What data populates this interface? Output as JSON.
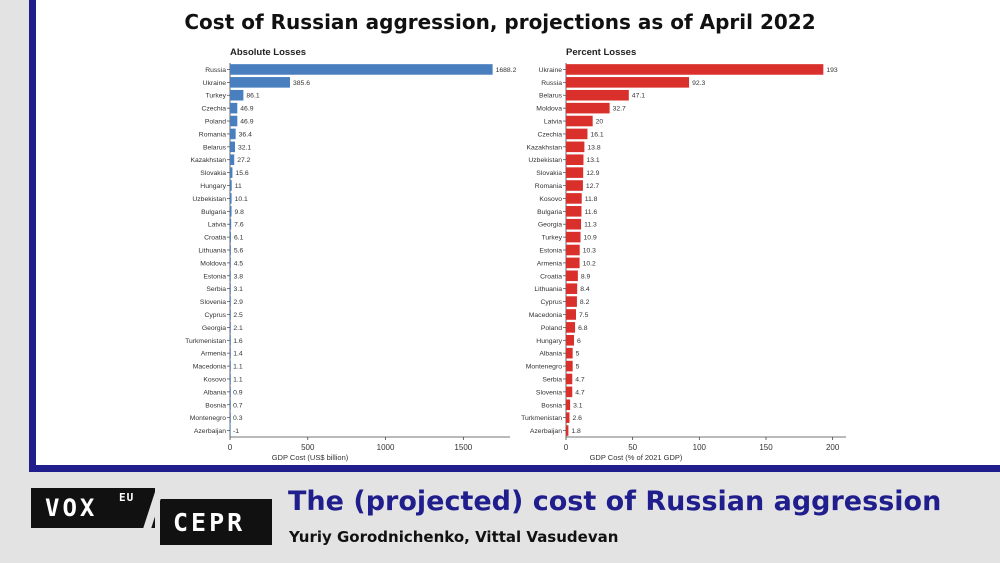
{
  "title": "Cost of Russian aggression, projections as of April 2022",
  "footer": {
    "logo_vox": "VOX",
    "logo_eu": "EU",
    "logo_cepr": "CEPR",
    "title": "The (projected) cost of Russian aggression",
    "authors": "Yuriy Gorodnichenko, Vittal Vasudevan"
  },
  "colors": {
    "absolute_bar": "#4a7fbf",
    "percent_bar": "#d9302b",
    "frame": "#1f1e8c"
  },
  "chart_data": [
    {
      "type": "bar",
      "orientation": "horizontal",
      "title": "Absolute Losses",
      "xlabel": "GDP Cost (US$ billion)",
      "xlim": [
        0,
        1800
      ],
      "xticks": [
        0,
        500,
        1000,
        1500
      ],
      "categories": [
        "Russia",
        "Ukraine",
        "Turkey",
        "Czechia",
        "Poland",
        "Romania",
        "Belarus",
        "Kazakhstan",
        "Slovakia",
        "Hungary",
        "Uzbekistan",
        "Bulgaria",
        "Latvia",
        "Croatia",
        "Lithuania",
        "Moldova",
        "Estonia",
        "Serbia",
        "Slovenia",
        "Cyprus",
        "Georgia",
        "Turkmenistan",
        "Armenia",
        "Macedonia",
        "Kosovo",
        "Albania",
        "Bosnia",
        "Montenegro",
        "Azerbaijan"
      ],
      "values": [
        1688.2,
        385.6,
        86.1,
        46.9,
        46.9,
        36.4,
        32.1,
        27.2,
        15.6,
        11,
        10.1,
        9.8,
        7.6,
        6.1,
        5.6,
        4.5,
        3.8,
        3.1,
        2.9,
        2.5,
        2.1,
        1.6,
        1.4,
        1.1,
        1.1,
        0.9,
        0.7,
        0.3,
        -1
      ],
      "labels": [
        "1688.2",
        "385.6",
        "86.1",
        "46.9",
        "46.9",
        "36.4",
        "32.1",
        "27.2",
        "15.6",
        "11",
        "10.1",
        "9.8",
        "7.6",
        "6.1",
        "5.6",
        "4.5",
        "3.8",
        "3.1",
        "2.9",
        "2.5",
        "2.1",
        "1.6",
        "1.4",
        "1.1",
        "1.1",
        "0.9",
        "0.7",
        "0.3",
        "-1"
      ]
    },
    {
      "type": "bar",
      "orientation": "horizontal",
      "title": "Percent Losses",
      "xlabel": "GDP Cost (% of 2021 GDP)",
      "xlim": [
        0,
        210
      ],
      "xticks": [
        0,
        50,
        100,
        150,
        200
      ],
      "categories": [
        "Ukraine",
        "Russia",
        "Belarus",
        "Moldova",
        "Latvia",
        "Czechia",
        "Kazakhstan",
        "Uzbekistan",
        "Slovakia",
        "Romania",
        "Kosovo",
        "Bulgaria",
        "Georgia",
        "Turkey",
        "Estonia",
        "Armenia",
        "Croatia",
        "Lithuania",
        "Cyprus",
        "Macedonia",
        "Poland",
        "Hungary",
        "Albania",
        "Montenegro",
        "Serbia",
        "Slovenia",
        "Bosnia",
        "Turkmenistan",
        "Azerbaijan"
      ],
      "values": [
        193,
        92.3,
        47.1,
        32.7,
        20,
        16.1,
        13.8,
        13.1,
        12.9,
        12.7,
        11.8,
        11.6,
        11.3,
        10.9,
        10.3,
        10.2,
        8.9,
        8.4,
        8.2,
        7.5,
        6.8,
        6,
        5,
        5,
        4.7,
        4.7,
        3.1,
        2.6,
        1.8
      ],
      "labels": [
        "193",
        "92.3",
        "47.1",
        "32.7",
        "20",
        "16.1",
        "13.8",
        "13.1",
        "12.9",
        "12.7",
        "11.8",
        "11.6",
        "11.3",
        "10.9",
        "10.3",
        "10.2",
        "8.9",
        "8.4",
        "8.2",
        "7.5",
        "6.8",
        "6",
        "5",
        "5",
        "4.7",
        "4.7",
        "3.1",
        "2.6",
        "1.8"
      ]
    }
  ]
}
